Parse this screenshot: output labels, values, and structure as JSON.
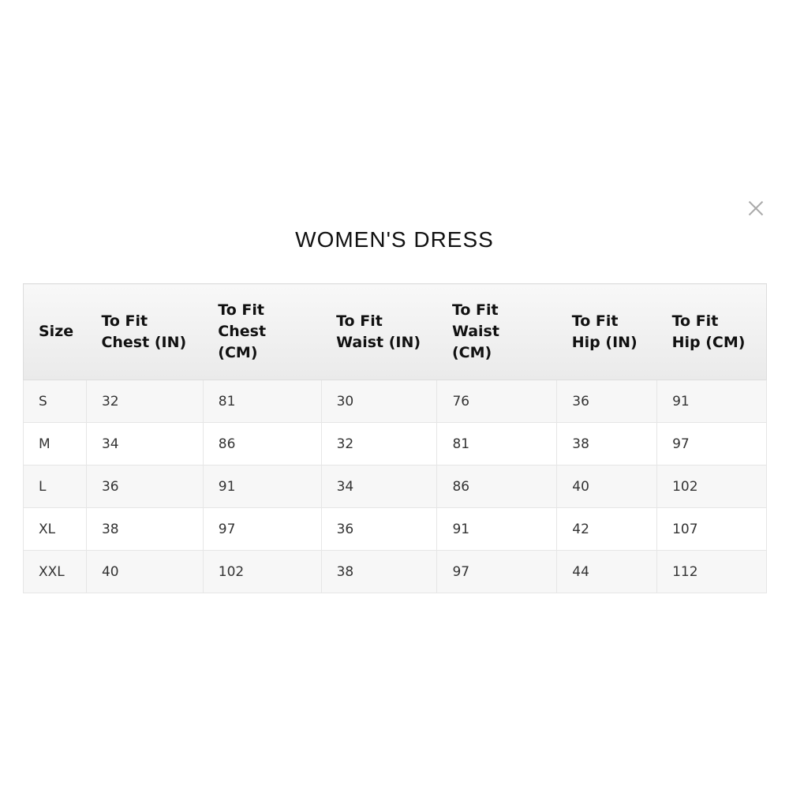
{
  "title": "WOMEN'S DRESS",
  "close_icon": "close-x-icon",
  "headers": [
    "Size",
    "To Fit\nChest (IN)",
    "To Fit\nChest\n(CM)",
    "To Fit\nWaist (IN)",
    "To Fit\nWaist\n(CM)",
    "To Fit\nHip (IN)",
    "To Fit\nHip (CM)"
  ],
  "rows": [
    [
      "S",
      "32",
      "81",
      "30",
      "76",
      "36",
      "91"
    ],
    [
      "M",
      "34",
      "86",
      "32",
      "81",
      "38",
      "97"
    ],
    [
      "L",
      "36",
      "91",
      "34",
      "86",
      "40",
      "102"
    ],
    [
      "XL",
      "38",
      "97",
      "36",
      "91",
      "42",
      "107"
    ],
    [
      "XXL",
      "40",
      "102",
      "38",
      "97",
      "44",
      "112"
    ]
  ]
}
